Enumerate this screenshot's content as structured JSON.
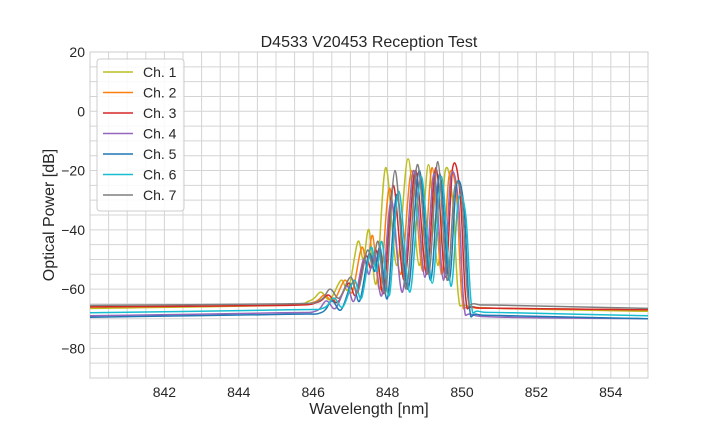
{
  "chart_data": {
    "type": "line",
    "title": "D4533 V20453 Reception Test",
    "xlabel": "Wavelength [nm]",
    "ylabel": "Optical Power [dB]",
    "xlim": [
      840,
      855
    ],
    "ylim": [
      -90,
      20
    ],
    "xticks": [
      842,
      844,
      846,
      848,
      850,
      852,
      854
    ],
    "yticks": [
      20,
      0,
      -20,
      -40,
      -60,
      -80
    ],
    "x_minor_step": 0.5,
    "y_minor_step": 5,
    "grid": true,
    "legend_position": "top-left",
    "series": [
      {
        "name": "Ch. 1",
        "color": "#bcbd22",
        "x": [
          840,
          845,
          845.9,
          846.2,
          846.45,
          846.75,
          846.95,
          847.2,
          847.35,
          847.5,
          847.7,
          847.95,
          848.25,
          848.55,
          848.85,
          849.1,
          849.35,
          849.55,
          849.75,
          849.9,
          850.1,
          851,
          855
        ],
        "y": [
          -66.5,
          -65.5,
          -64,
          -61,
          -63.5,
          -57,
          -60,
          -44,
          -50,
          -40,
          -58,
          -19,
          -52,
          -16,
          -52,
          -18,
          -52,
          -20,
          -30,
          -62,
          -65.5,
          -66.5,
          -67.5
        ]
      },
      {
        "name": "Ch. 2",
        "color": "#ff7f0e",
        "x": [
          840,
          845.1,
          846,
          846.3,
          846.55,
          846.85,
          847.05,
          847.3,
          847.45,
          847.6,
          847.8,
          848.05,
          848.35,
          848.65,
          848.95,
          849.2,
          849.45,
          849.65,
          849.85,
          850,
          850.2,
          851.1,
          855
        ],
        "y": [
          -66,
          -65.5,
          -64.5,
          -62,
          -64,
          -57,
          -61,
          -46,
          -52,
          -42,
          -60,
          -26,
          -55,
          -20,
          -54,
          -19,
          -55,
          -22,
          -28,
          -63,
          -66,
          -66.5,
          -67
        ]
      },
      {
        "name": "Ch. 3",
        "color": "#d62728",
        "x": [
          840,
          845.2,
          846.1,
          846.4,
          846.65,
          846.95,
          847.15,
          847.4,
          847.55,
          847.7,
          847.9,
          848.15,
          848.45,
          848.75,
          849.05,
          849.3,
          849.55,
          849.75,
          849.95,
          850.1,
          850.3,
          851.2,
          855
        ],
        "y": [
          -66,
          -65.5,
          -64.5,
          -62,
          -64.5,
          -58,
          -62,
          -49,
          -53,
          -47,
          -61,
          -25,
          -57,
          -20,
          -55,
          -19,
          -56,
          -19,
          -28,
          -63,
          -66,
          -66.5,
          -67
        ]
      },
      {
        "name": "Ch. 4",
        "color": "#9467bd",
        "x": [
          840,
          845.15,
          846.05,
          846.35,
          846.6,
          846.9,
          847.1,
          847.35,
          847.5,
          847.65,
          847.85,
          848.1,
          848.4,
          848.7,
          849,
          849.25,
          849.5,
          849.7,
          849.9,
          850.05,
          850.25,
          851.15,
          855
        ],
        "y": [
          -69,
          -68,
          -67.5,
          -64,
          -66.5,
          -59,
          -64,
          -50,
          -55,
          -48,
          -62,
          -30,
          -61,
          -20,
          -56,
          -21,
          -57,
          -22,
          -30,
          -65,
          -68.5,
          -69.5,
          -70
        ]
      },
      {
        "name": "Ch. 5",
        "color": "#1f77b4",
        "x": [
          840,
          845.3,
          846.2,
          846.5,
          846.75,
          847.05,
          847.25,
          847.5,
          847.65,
          847.8,
          848,
          848.25,
          848.55,
          848.85,
          849.15,
          849.4,
          849.65,
          849.85,
          850.05,
          850.2,
          850.4,
          851.3,
          855
        ],
        "y": [
          -69.5,
          -68.5,
          -68,
          -64,
          -67,
          -58,
          -64,
          -48,
          -54,
          -46,
          -63,
          -28,
          -60,
          -20,
          -57,
          -21,
          -57,
          -25,
          -32,
          -66,
          -68.5,
          -69,
          -70
        ]
      },
      {
        "name": "Ch. 6",
        "color": "#17becf",
        "x": [
          840,
          845.35,
          846.25,
          846.55,
          846.8,
          847.1,
          847.3,
          847.55,
          847.7,
          847.85,
          848.05,
          848.3,
          848.6,
          848.9,
          849.2,
          849.45,
          849.7,
          849.9,
          850.1,
          850.25,
          850.45,
          851.35,
          855
        ],
        "y": [
          -68,
          -67,
          -66.5,
          -63,
          -66,
          -57,
          -63,
          -46,
          -54,
          -44,
          -62,
          -27,
          -61,
          -22,
          -58,
          -22,
          -59,
          -30,
          -35,
          -65,
          -67.5,
          -68,
          -69
        ]
      },
      {
        "name": "Ch. 7",
        "color": "#7f7f7f",
        "x": [
          840,
          845.25,
          846.15,
          846.45,
          846.7,
          847,
          847.2,
          847.45,
          847.6,
          847.75,
          847.95,
          848.2,
          848.5,
          848.8,
          849.1,
          849.35,
          849.6,
          849.8,
          850,
          850.15,
          850.35,
          851.25,
          855
        ],
        "y": [
          -65.5,
          -65,
          -64,
          -60,
          -63,
          -56,
          -61,
          -47,
          -52,
          -44,
          -61,
          -20,
          -60,
          -18,
          -55,
          -17,
          -57,
          -26,
          -30,
          -62,
          -65,
          -65.5,
          -66.5
        ]
      }
    ]
  }
}
